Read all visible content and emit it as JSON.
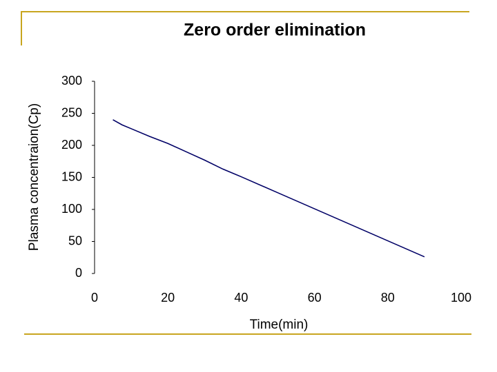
{
  "chart_data": {
    "type": "line",
    "title": "Zero order elimination",
    "x_label": "Time(min)",
    "y_label": "Plasma concentraion(Cp)",
    "x": [
      5,
      7.5,
      10,
      15,
      20,
      25,
      30,
      35,
      40,
      50,
      60,
      70,
      80,
      90
    ],
    "series": [
      {
        "color": "#000066",
        "values": [
          240,
          232,
          226,
          214,
          203,
          190,
          177,
          163,
          151,
          126,
          101,
          76,
          51,
          26
        ]
      }
    ],
    "xlim": [
      0,
      100
    ],
    "xticks": [
      0,
      20,
      40,
      60,
      80,
      100
    ],
    "ylim": [
      0,
      300
    ],
    "yticks": [
      0,
      50,
      100,
      150,
      200,
      250,
      300
    ],
    "grid": false
  }
}
